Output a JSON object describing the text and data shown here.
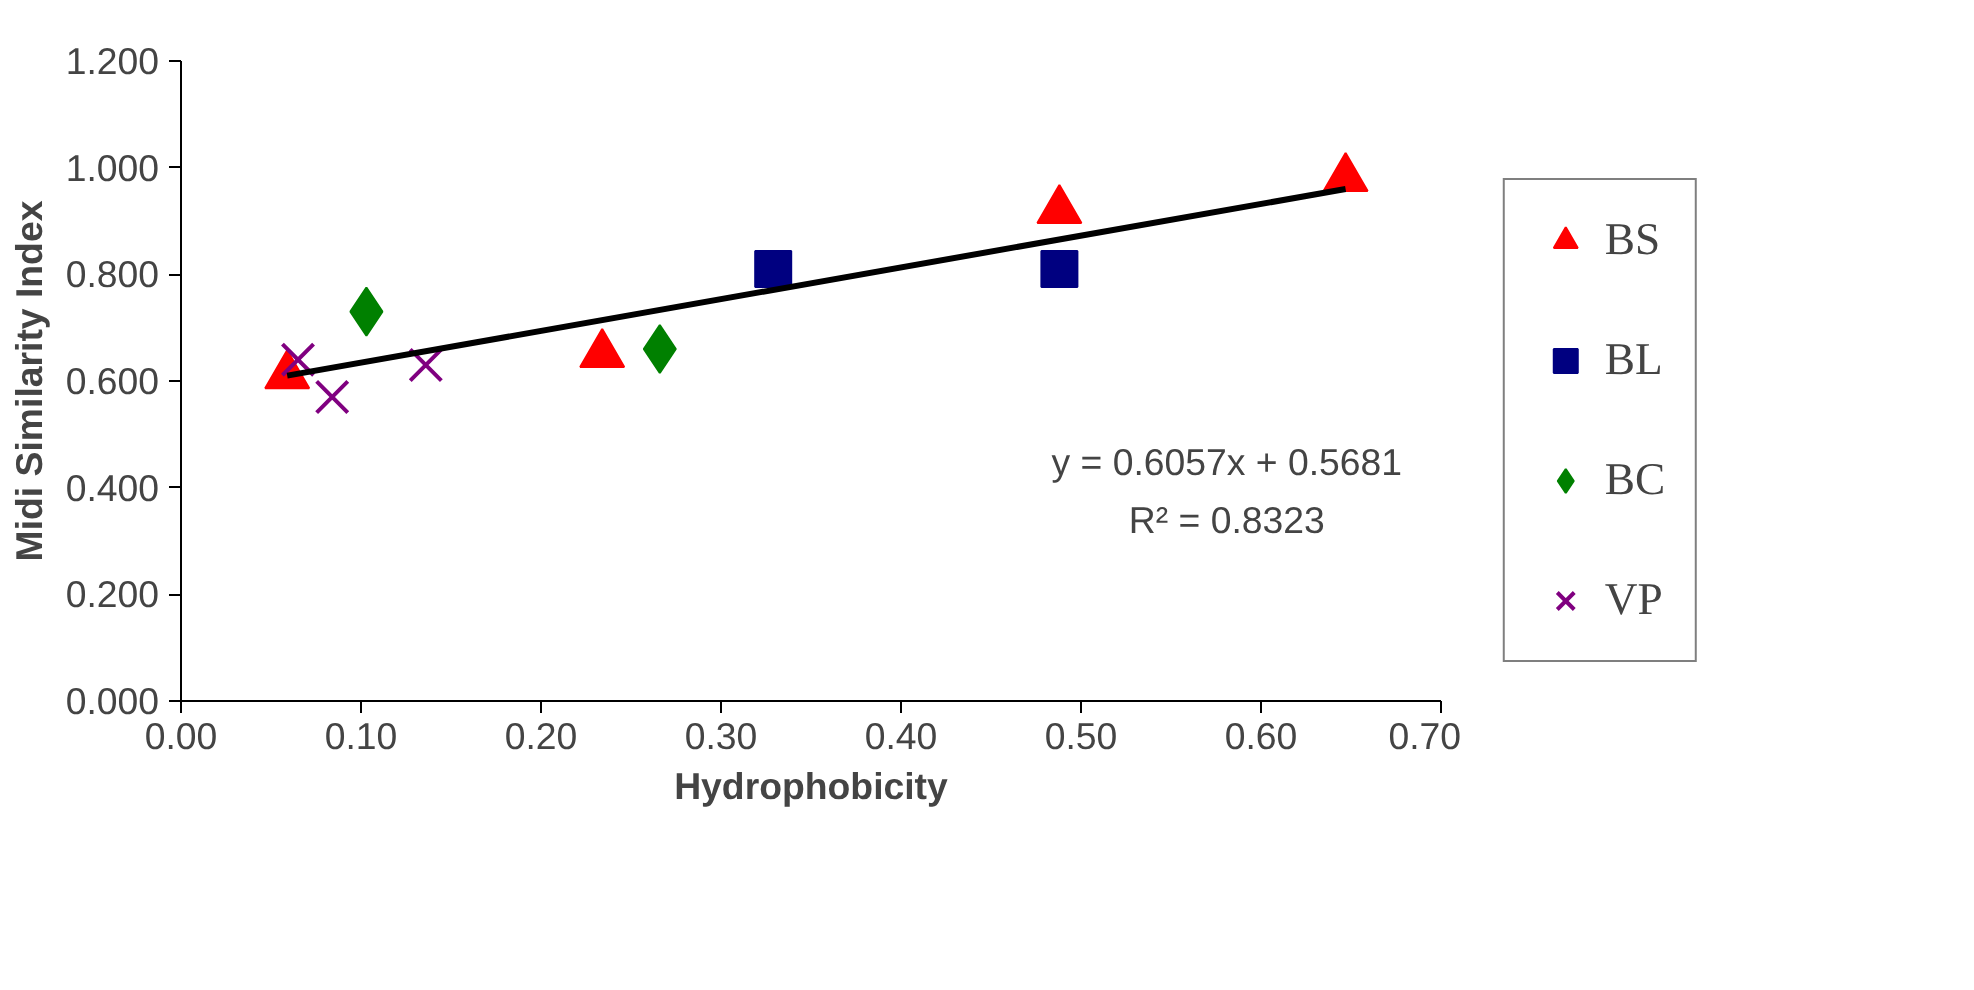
{
  "chart_data": {
    "type": "scatter",
    "xlabel": "Hydrophobicity",
    "ylabel": "Midi Similarity Index",
    "xlim": [
      0,
      0.7
    ],
    "xticks": [
      {
        "value": 0,
        "label": "0.00"
      },
      {
        "value": 0.1,
        "label": "0.10"
      },
      {
        "value": 0.2,
        "label": "0.20"
      },
      {
        "value": 0.3,
        "label": "0.30"
      },
      {
        "value": 0.4,
        "label": "0.40"
      },
      {
        "value": 0.5,
        "label": "0.50"
      },
      {
        "value": 0.6,
        "label": "0.60"
      },
      {
        "value": 0.7,
        "label": "0.70"
      }
    ],
    "ylim": [
      0,
      1.2
    ],
    "yticks": [
      {
        "value": 0,
        "label": "0.000"
      },
      {
        "value": 0.2,
        "label": "0.200"
      },
      {
        "value": 0.4,
        "label": "0.400"
      },
      {
        "value": 0.6,
        "label": "0.600"
      },
      {
        "value": 0.8,
        "label": "0.800"
      },
      {
        "value": 1.0,
        "label": "1.000"
      },
      {
        "value": 1.2,
        "label": "1.200"
      }
    ],
    "grid": false,
    "legend": "right",
    "series": [
      {
        "name": "BS",
        "color": "#ff0000",
        "marker": "triangle",
        "x": [
          0.059,
          0.234,
          0.488,
          0.647
        ],
        "values": [
          0.61,
          0.65,
          0.92,
          0.98
        ]
      },
      {
        "name": "BL",
        "color": "#000080",
        "marker": "square",
        "x": [
          0.329,
          0.488
        ],
        "values": [
          0.81,
          0.81
        ]
      },
      {
        "name": "BC",
        "color": "#008000",
        "marker": "diamond",
        "x": [
          0.103,
          0.266
        ],
        "values": [
          0.73,
          0.66
        ]
      },
      {
        "name": "VP",
        "color": "#800080",
        "marker": "cross",
        "x": [
          0.065,
          0.084,
          0.136
        ],
        "values": [
          0.64,
          0.57,
          0.63
        ]
      },
      {
        "type": "line",
        "color": "#000000",
        "x": [
          0.059,
          0.647
        ],
        "values": [
          0.61,
          0.96
        ]
      }
    ],
    "annotations": [
      "y = 0.6057x + 0.5681",
      "R² = 0.8323"
    ]
  }
}
